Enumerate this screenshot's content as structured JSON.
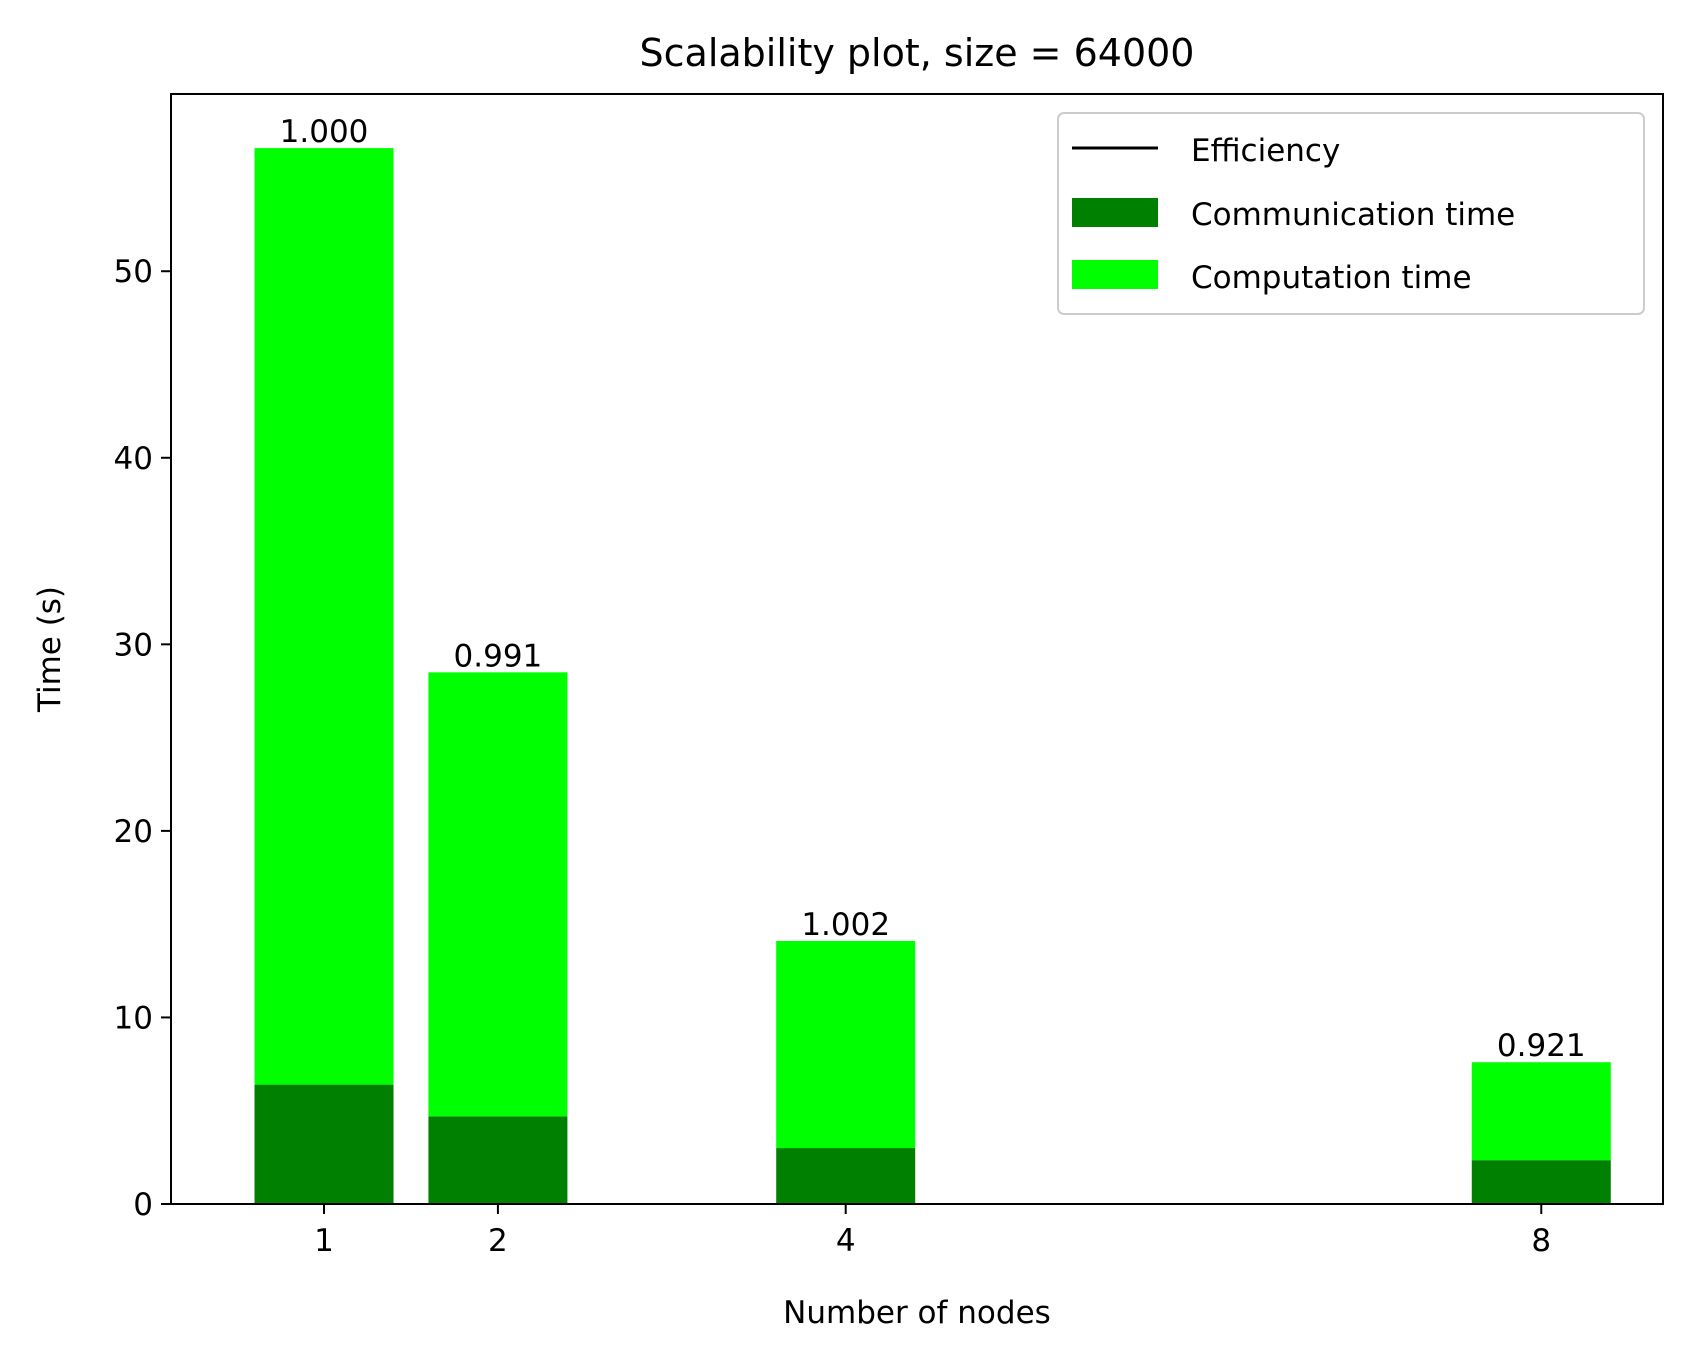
{
  "chart_data": {
    "type": "bar",
    "stacked": true,
    "title": "Scalability plot, size = 64000",
    "xlabel": "Number of nodes",
    "ylabel": "Time (s)",
    "x": [
      1,
      2,
      4,
      8
    ],
    "xticks": [
      "1",
      "2",
      "4",
      "8"
    ],
    "xlim": [
      0.12,
      8.7
    ],
    "ylim": [
      0,
      59.5
    ],
    "yticks": [
      0,
      10,
      20,
      30,
      40,
      50
    ],
    "ytick_labels": [
      "0",
      "10",
      "20",
      "30",
      "40",
      "50"
    ],
    "series": [
      {
        "name": "Communication time",
        "color": "#008000",
        "values": [
          6.4,
          4.7,
          3.0,
          2.35
        ]
      },
      {
        "name": "Computation time",
        "color": "#00ff00",
        "values": [
          50.2,
          23.8,
          11.1,
          5.25
        ]
      }
    ],
    "line_series": [
      {
        "name": "Efficiency",
        "color": "#000000"
      }
    ],
    "efficiency_labels": [
      "1.000",
      "0.991",
      "1.002",
      "0.921"
    ],
    "legend_position": "top-right",
    "grid": false
  }
}
